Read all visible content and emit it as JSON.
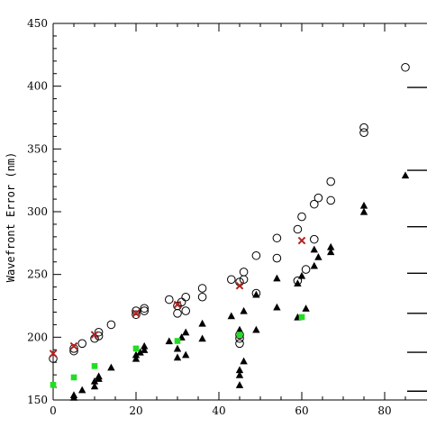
{
  "chart_data": {
    "type": "scatter",
    "title": "",
    "xlabel": "",
    "ylabel": "Wavefront Error (nm)",
    "xlim": [
      0,
      90
    ],
    "ylim": [
      150,
      450
    ],
    "x_ticks": [
      0,
      20,
      40,
      60,
      80
    ],
    "y_ticks": [
      150,
      200,
      250,
      300,
      350,
      400,
      450
    ],
    "grid": false,
    "series": [
      {
        "marker": "open-circle",
        "color": "#000000",
        "points": [
          [
            0,
            183
          ],
          [
            5,
            189
          ],
          [
            5,
            191
          ],
          [
            7,
            195
          ],
          [
            10,
            199
          ],
          [
            11,
            201
          ],
          [
            11,
            204
          ],
          [
            14,
            210
          ],
          [
            20,
            218
          ],
          [
            20,
            221
          ],
          [
            22,
            221
          ],
          [
            22,
            223
          ],
          [
            28,
            230
          ],
          [
            30,
            219
          ],
          [
            30,
            225
          ],
          [
            31,
            228
          ],
          [
            32,
            221
          ],
          [
            32,
            232
          ],
          [
            36,
            232
          ],
          [
            36,
            239
          ],
          [
            43,
            246
          ],
          [
            45,
            195
          ],
          [
            45,
            199
          ],
          [
            45,
            202
          ],
          [
            45,
            244
          ],
          [
            46,
            246
          ],
          [
            46,
            252
          ],
          [
            49,
            235
          ],
          [
            49,
            265
          ],
          [
            54,
            263
          ],
          [
            54,
            279
          ],
          [
            59,
            245
          ],
          [
            59,
            286
          ],
          [
            60,
            296
          ],
          [
            61,
            254
          ],
          [
            63,
            278
          ],
          [
            63,
            306
          ],
          [
            64,
            311
          ],
          [
            67,
            309
          ],
          [
            67,
            324
          ],
          [
            75,
            363
          ],
          [
            75,
            367
          ],
          [
            85,
            415
          ]
        ]
      },
      {
        "marker": "filled-triangle",
        "color": "#000000",
        "points": [
          [
            5,
            152
          ],
          [
            5,
            154
          ],
          [
            7,
            158
          ],
          [
            10,
            161
          ],
          [
            10,
            165
          ],
          [
            11,
            167
          ],
          [
            11,
            169
          ],
          [
            14,
            176
          ],
          [
            20,
            183
          ],
          [
            20,
            186
          ],
          [
            21,
            188
          ],
          [
            22,
            190
          ],
          [
            22,
            193
          ],
          [
            28,
            197
          ],
          [
            30,
            184
          ],
          [
            30,
            191
          ],
          [
            31,
            200
          ],
          [
            32,
            186
          ],
          [
            32,
            204
          ],
          [
            36,
            199
          ],
          [
            36,
            211
          ],
          [
            43,
            217
          ],
          [
            45,
            162
          ],
          [
            45,
            170
          ],
          [
            45,
            174
          ],
          [
            46,
            181
          ],
          [
            45,
            206
          ],
          [
            46,
            221
          ],
          [
            49,
            234
          ],
          [
            49,
            206
          ],
          [
            54,
            224
          ],
          [
            54,
            247
          ],
          [
            59,
            216
          ],
          [
            59,
            243
          ],
          [
            60,
            249
          ],
          [
            61,
            223
          ],
          [
            63,
            257
          ],
          [
            63,
            270
          ],
          [
            64,
            264
          ],
          [
            67,
            268
          ],
          [
            67,
            272
          ],
          [
            75,
            300
          ],
          [
            75,
            305
          ],
          [
            85,
            329
          ]
        ]
      },
      {
        "marker": "x-cross",
        "color": "#b22222",
        "points": [
          [
            0,
            187
          ],
          [
            5,
            193
          ],
          [
            10,
            202
          ],
          [
            20,
            219
          ],
          [
            30,
            226
          ],
          [
            45,
            241
          ],
          [
            60,
            277
          ]
        ]
      },
      {
        "marker": "filled-square",
        "color": "#22dd22",
        "points": [
          [
            0,
            162
          ],
          [
            5,
            168
          ],
          [
            10,
            177
          ],
          [
            20,
            191
          ],
          [
            30,
            197
          ],
          [
            45,
            202
          ],
          [
            60,
            216
          ]
        ]
      }
    ],
    "right_edge_ticks": [
      157,
      188,
      219,
      251,
      288,
      333,
      399
    ]
  }
}
